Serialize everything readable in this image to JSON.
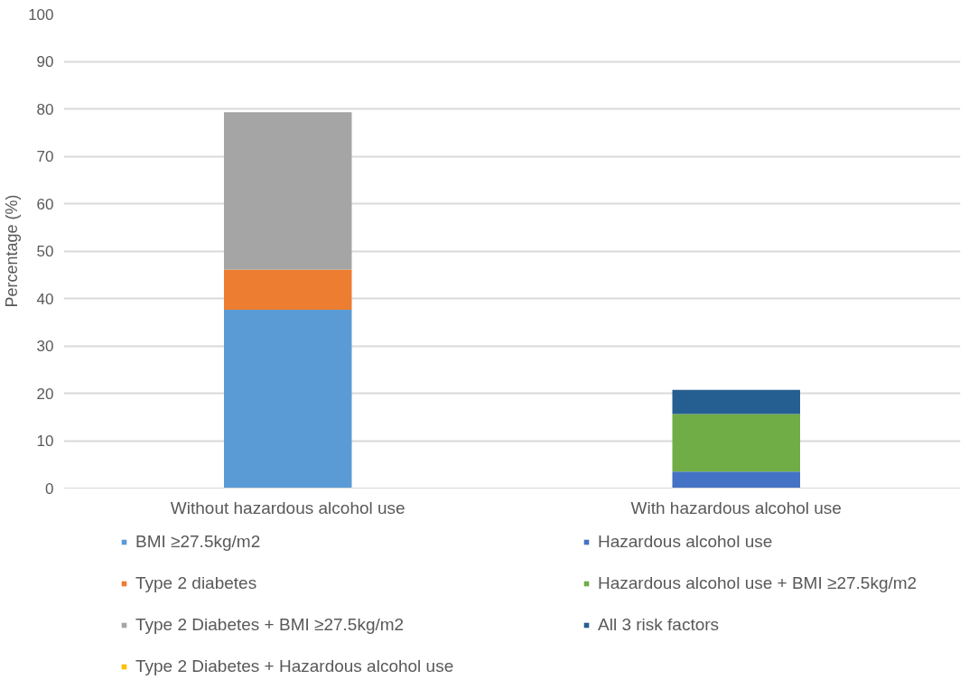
{
  "chart_data": {
    "type": "bar",
    "stacked": true,
    "ylabel": "Percentage (%)",
    "categories": [
      "Without hazardous alcohol use",
      "With hazardous alcohol use"
    ],
    "series": [
      {
        "name": "BMI ≥27.5kg/m2",
        "color": "#5b9bd5",
        "values": [
          37.6,
          0
        ]
      },
      {
        "name": "Type 2 diabetes",
        "color": "#ed7d31",
        "values": [
          8.5,
          0
        ]
      },
      {
        "name": "Type 2 Diabetes + BMI ≥27.5kg/m2",
        "color": "#a5a5a5",
        "values": [
          33.2,
          0
        ]
      },
      {
        "name": "Type 2 Diabetes + Hazardous alcohol use",
        "color": "#ffc000",
        "values": [
          0,
          0
        ]
      },
      {
        "name": "Hazardous alcohol use",
        "color": "#4472c4",
        "values": [
          0,
          3.5
        ]
      },
      {
        "name": "Hazardous alcohol use + BMI ≥27.5kg/m2",
        "color": "#70ad47",
        "values": [
          0,
          12.1
        ]
      },
      {
        "name": "All 3 risk factors",
        "color": "#255e91",
        "values": [
          0,
          5.1
        ]
      }
    ],
    "ylim": [
      0,
      100
    ],
    "yticks": [
      0,
      10,
      20,
      30,
      40,
      50,
      60,
      70,
      80,
      90,
      100
    ],
    "grid": "y",
    "legend": "bottom"
  }
}
